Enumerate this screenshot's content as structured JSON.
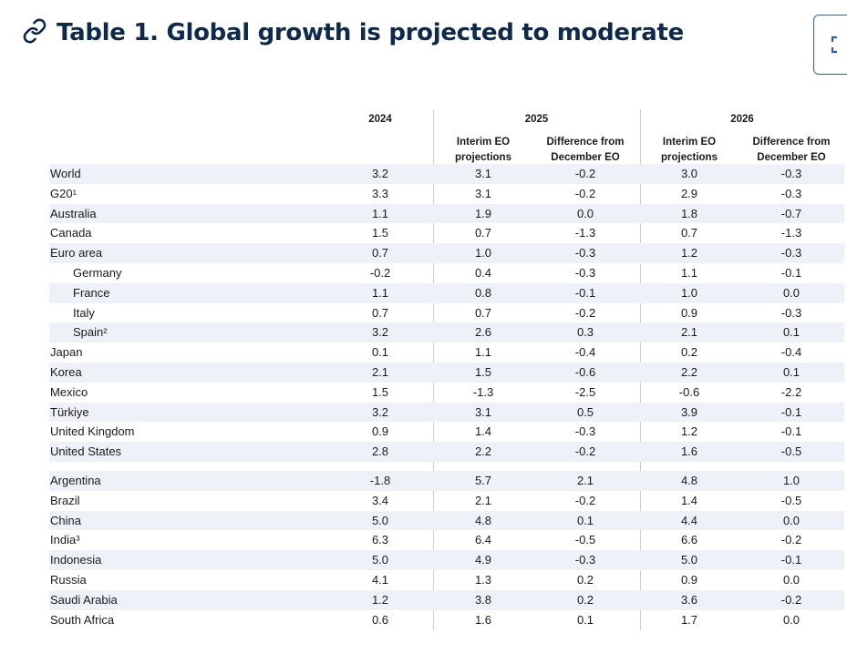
{
  "title": "Table 1. Global growth is projected to moderate",
  "icons": {
    "link": "link-icon",
    "expand": "expand-icon"
  },
  "headers": {
    "y2024": "2024",
    "y2025": "2025",
    "y2026": "2026",
    "interim_line1": "Interim EO",
    "interim_line2": "projections",
    "diff_line1": "Difference from",
    "diff_line2": "December EO"
  },
  "rows_group1": [
    {
      "name": "World",
      "v2024": "3.2",
      "p2025": "3.1",
      "d2025": "-0.2",
      "p2026": "3.0",
      "d2026": "-0.3",
      "indent": false
    },
    {
      "name": "G20¹",
      "v2024": "3.3",
      "p2025": "3.1",
      "d2025": "-0.2",
      "p2026": "2.9",
      "d2026": "-0.3",
      "indent": false
    },
    {
      "name": "Australia",
      "v2024": "1.1",
      "p2025": "1.9",
      "d2025": "0.0",
      "p2026": "1.8",
      "d2026": "-0.7",
      "indent": false
    },
    {
      "name": "Canada",
      "v2024": "1.5",
      "p2025": "0.7",
      "d2025": "-1.3",
      "p2026": "0.7",
      "d2026": "-1.3",
      "indent": false
    },
    {
      "name": "Euro area",
      "v2024": "0.7",
      "p2025": "1.0",
      "d2025": "-0.3",
      "p2026": "1.2",
      "d2026": "-0.3",
      "indent": false
    },
    {
      "name": "Germany",
      "v2024": "-0.2",
      "p2025": "0.4",
      "d2025": "-0.3",
      "p2026": "1.1",
      "d2026": "-0.1",
      "indent": true
    },
    {
      "name": "France",
      "v2024": "1.1",
      "p2025": "0.8",
      "d2025": "-0.1",
      "p2026": "1.0",
      "d2026": "0.0",
      "indent": true
    },
    {
      "name": "Italy",
      "v2024": "0.7",
      "p2025": "0.7",
      "d2025": "-0.2",
      "p2026": "0.9",
      "d2026": "-0.3",
      "indent": true
    },
    {
      "name": "Spain²",
      "v2024": "3.2",
      "p2025": "2.6",
      "d2025": "0.3",
      "p2026": "2.1",
      "d2026": "0.1",
      "indent": true
    },
    {
      "name": "Japan",
      "v2024": "0.1",
      "p2025": "1.1",
      "d2025": "-0.4",
      "p2026": "0.2",
      "d2026": "-0.4",
      "indent": false
    },
    {
      "name": "Korea",
      "v2024": "2.1",
      "p2025": "1.5",
      "d2025": "-0.6",
      "p2026": "2.2",
      "d2026": "0.1",
      "indent": false
    },
    {
      "name": "Mexico",
      "v2024": "1.5",
      "p2025": "-1.3",
      "d2025": "-2.5",
      "p2026": "-0.6",
      "d2026": "-2.2",
      "indent": false
    },
    {
      "name": "Türkiye",
      "v2024": "3.2",
      "p2025": "3.1",
      "d2025": "0.5",
      "p2026": "3.9",
      "d2026": "-0.1",
      "indent": false
    },
    {
      "name": "United Kingdom",
      "v2024": "0.9",
      "p2025": "1.4",
      "d2025": "-0.3",
      "p2026": "1.2",
      "d2026": "-0.1",
      "indent": false
    },
    {
      "name": "United States",
      "v2024": "2.8",
      "p2025": "2.2",
      "d2025": "-0.2",
      "p2026": "1.6",
      "d2026": "-0.5",
      "indent": false
    }
  ],
  "rows_group2": [
    {
      "name": "Argentina",
      "v2024": "-1.8",
      "p2025": "5.7",
      "d2025": "2.1",
      "p2026": "4.8",
      "d2026": "1.0",
      "indent": false
    },
    {
      "name": "Brazil",
      "v2024": "3.4",
      "p2025": "2.1",
      "d2025": "-0.2",
      "p2026": "1.4",
      "d2026": "-0.5",
      "indent": false
    },
    {
      "name": "China",
      "v2024": "5.0",
      "p2025": "4.8",
      "d2025": "0.1",
      "p2026": "4.4",
      "d2026": "0.0",
      "indent": false
    },
    {
      "name": "India³",
      "v2024": "6.3",
      "p2025": "6.4",
      "d2025": "-0.5",
      "p2026": "6.6",
      "d2026": "-0.2",
      "indent": false
    },
    {
      "name": "Indonesia",
      "v2024": "5.0",
      "p2025": "4.9",
      "d2025": "-0.3",
      "p2026": "5.0",
      "d2026": "-0.1",
      "indent": false
    },
    {
      "name": "Russia",
      "v2024": "4.1",
      "p2025": "1.3",
      "d2025": "0.2",
      "p2026": "0.9",
      "d2026": "0.0",
      "indent": false
    },
    {
      "name": "Saudi Arabia",
      "v2024": "1.2",
      "p2025": "3.8",
      "d2025": "0.2",
      "p2026": "3.6",
      "d2026": "-0.2",
      "indent": false
    },
    {
      "name": "South Africa",
      "v2024": "0.6",
      "p2025": "1.6",
      "d2025": "0.1",
      "p2026": "1.7",
      "d2026": "0.0",
      "indent": false
    }
  ]
}
